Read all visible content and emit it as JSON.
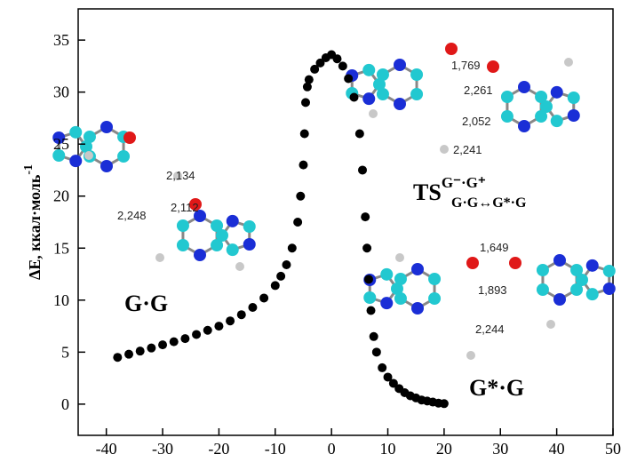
{
  "chart_data": {
    "type": "scatter",
    "ylabel": "ΔE, ккал·моль",
    "ylabel_sup": "-1",
    "x": [
      -38,
      -36,
      -34,
      -32,
      -30,
      -28,
      -26,
      -24,
      -22,
      -20,
      -18,
      -16,
      -14,
      -12,
      -10,
      -9,
      -8,
      -7,
      -6,
      -5.5,
      -5,
      -4.8,
      -4.6,
      -4.3,
      -4,
      -3,
      -2,
      -1,
      0,
      1,
      2,
      3,
      4,
      5,
      5.5,
      6,
      6.3,
      6.6,
      7,
      7.5,
      8,
      9,
      10,
      11,
      12,
      13,
      14,
      15,
      16,
      17,
      18,
      19,
      20
    ],
    "values": [
      4.5,
      4.8,
      5.1,
      5.4,
      5.7,
      6.0,
      6.3,
      6.7,
      7.1,
      7.5,
      8.0,
      8.6,
      9.3,
      10.2,
      11.4,
      12.3,
      13.4,
      15.0,
      17.5,
      20,
      23,
      26,
      29,
      30.5,
      31.2,
      32.2,
      32.8,
      33.3,
      33.6,
      33.2,
      32.5,
      31.3,
      29.5,
      26,
      22.5,
      18,
      15,
      12,
      9,
      6.5,
      5,
      3.5,
      2.6,
      2.0,
      1.5,
      1.1,
      0.8,
      0.6,
      0.4,
      0.3,
      0.2,
      0.1,
      0.05
    ],
    "color": "#000000",
    "xlim": [
      -45,
      50
    ],
    "ylim": [
      -3,
      38
    ],
    "xticks": [
      -40,
      -30,
      -20,
      -10,
      0,
      10,
      20,
      30,
      40,
      50
    ],
    "yticks": [
      0,
      5,
      10,
      15,
      20,
      25,
      30,
      35
    ],
    "labels": {
      "gg": "G·G",
      "ts": "TS",
      "ts_sup": "G⁻·G⁺",
      "ts_sub": "G·G↔G*·G",
      "gsg": "G*·G"
    },
    "distances": [
      "2,134",
      "2,248",
      "2,112",
      "1,769",
      "2,261",
      "2,052",
      "2,241",
      "1,649",
      "1,893",
      "2,244"
    ]
  }
}
